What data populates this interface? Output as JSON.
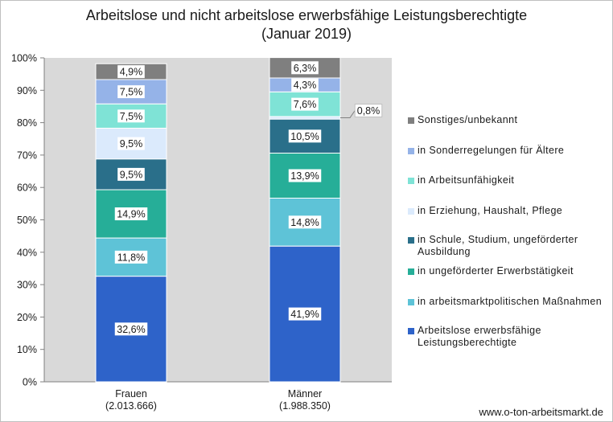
{
  "source": "www.o-ton-arbeitsmarkt.de",
  "chart_data": {
    "type": "bar",
    "stacked": true,
    "percent": true,
    "title": [
      "Arbeitslose und nicht arbeitslose erwerbsfähige Leistungsberechtigte",
      "(Januar 2019)"
    ],
    "categories": [
      {
        "label": "Frauen",
        "sublabel": "(2.013.666)"
      },
      {
        "label": "Männer",
        "sublabel": "(1.988.350)"
      }
    ],
    "ylim": [
      0,
      100
    ],
    "yticks": [
      "0%",
      "10%",
      "20%",
      "30%",
      "40%",
      "50%",
      "60%",
      "70%",
      "80%",
      "90%",
      "100%"
    ],
    "grid": false,
    "plot_background": "#d9d9d9",
    "legend_position": "right",
    "series": [
      {
        "name": "Arbeitslose erwerbsfähige Leistungsberechtigte",
        "color": "#2e63c9",
        "values": [
          32.6,
          41.9
        ],
        "labels": [
          "32,6%",
          "41,9%"
        ]
      },
      {
        "name": "in arbeitsmarktpolitischen Maßnahmen",
        "color": "#5ec3d7",
        "values": [
          11.8,
          14.8
        ],
        "labels": [
          "11,8%",
          "14,8%"
        ]
      },
      {
        "name": "in ungeförderter Erwerbstätigkeit",
        "color": "#26ae98",
        "values": [
          14.9,
          13.9
        ],
        "labels": [
          "14,9%",
          "13,9%"
        ]
      },
      {
        "name": "in Schule, Studium, ungeförderter Ausbildung",
        "color": "#2a6f8a",
        "values": [
          9.5,
          10.5
        ],
        "labels": [
          "9,5%",
          "10,5%"
        ]
      },
      {
        "name": "in Erziehung, Haushalt, Pflege",
        "color": "#dbeafc",
        "values": [
          9.5,
          0.8
        ],
        "labels": [
          "9,5%",
          "0,8%"
        ]
      },
      {
        "name": "in Arbeitsunfähigkeit",
        "color": "#7fe3d6",
        "values": [
          7.5,
          7.6
        ],
        "labels": [
          "7,5%",
          "7,6%"
        ]
      },
      {
        "name": "in Sonderregelungen für Ältere",
        "color": "#95b3e8",
        "values": [
          7.5,
          4.3
        ],
        "labels": [
          "7,5%",
          "4,3%"
        ]
      },
      {
        "name": "Sonstiges/unbekannt",
        "color": "#7f7f7f",
        "values": [
          4.9,
          6.3
        ],
        "labels": [
          "4,9%",
          "6,3%"
        ]
      }
    ]
  }
}
